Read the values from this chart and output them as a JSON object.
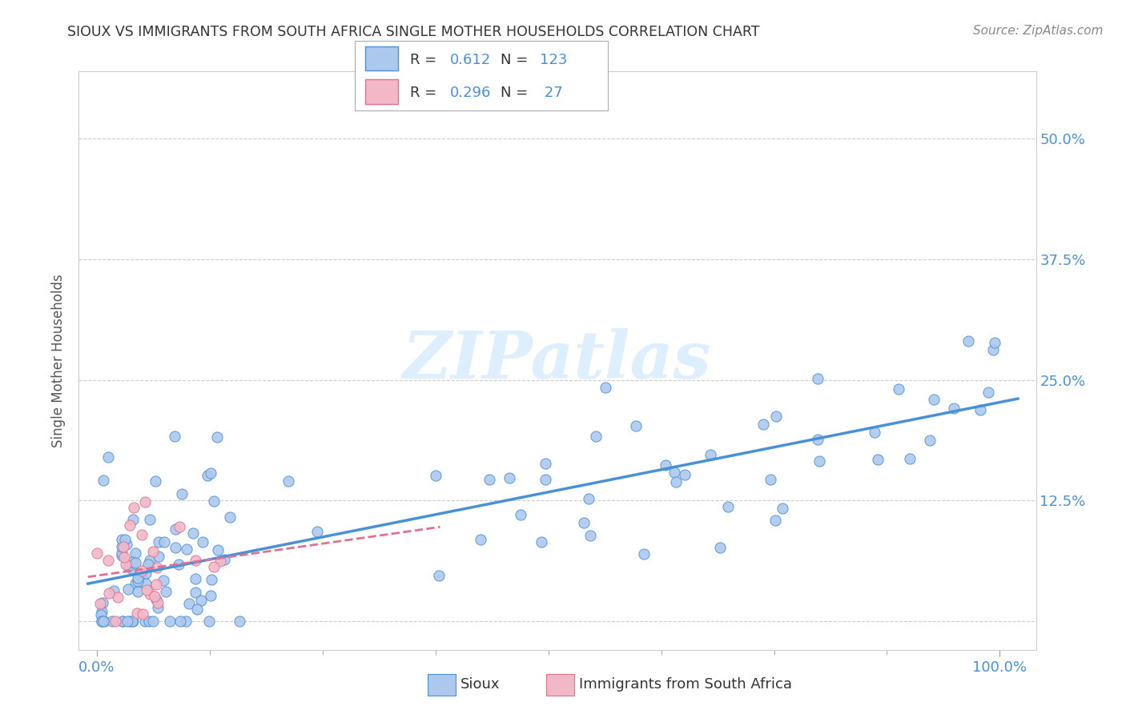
{
  "title": "SIOUX VS IMMIGRANTS FROM SOUTH AFRICA SINGLE MOTHER HOUSEHOLDS CORRELATION CHART",
  "source": "Source: ZipAtlas.com",
  "ylabel": "Single Mother Households",
  "sioux_R": 0.612,
  "sioux_N": 123,
  "immigrants_R": 0.296,
  "immigrants_N": 27,
  "sioux_color": "#adc8ed",
  "immigrants_color": "#f2b8c8",
  "sioux_line_color": "#4a90d9",
  "immigrants_line_color": "#e07090",
  "blue_text_color": "#4a90d9",
  "dark_text_color": "#333333",
  "axis_tick_color": "#4a90d9",
  "watermark_color": "#ddeeff",
  "background_color": "#ffffff",
  "grid_color": "#cccccc",
  "legend_text": [
    "R = ",
    "0.612",
    "  N = ",
    "123",
    "R = ",
    "0.296",
    "  N = ",
    " 27"
  ],
  "bottom_legend_labels": [
    "Sioux",
    "Immigrants from South Africa"
  ],
  "ytick_vals": [
    0.0,
    0.125,
    0.25,
    0.375,
    0.5
  ],
  "ytick_labels": [
    "",
    "12.5%",
    "25.0%",
    "37.5%",
    "50.0%"
  ],
  "xtick_vals": [
    0.0,
    1.0
  ],
  "xtick_labels": [
    "0.0%",
    "100.0%"
  ]
}
